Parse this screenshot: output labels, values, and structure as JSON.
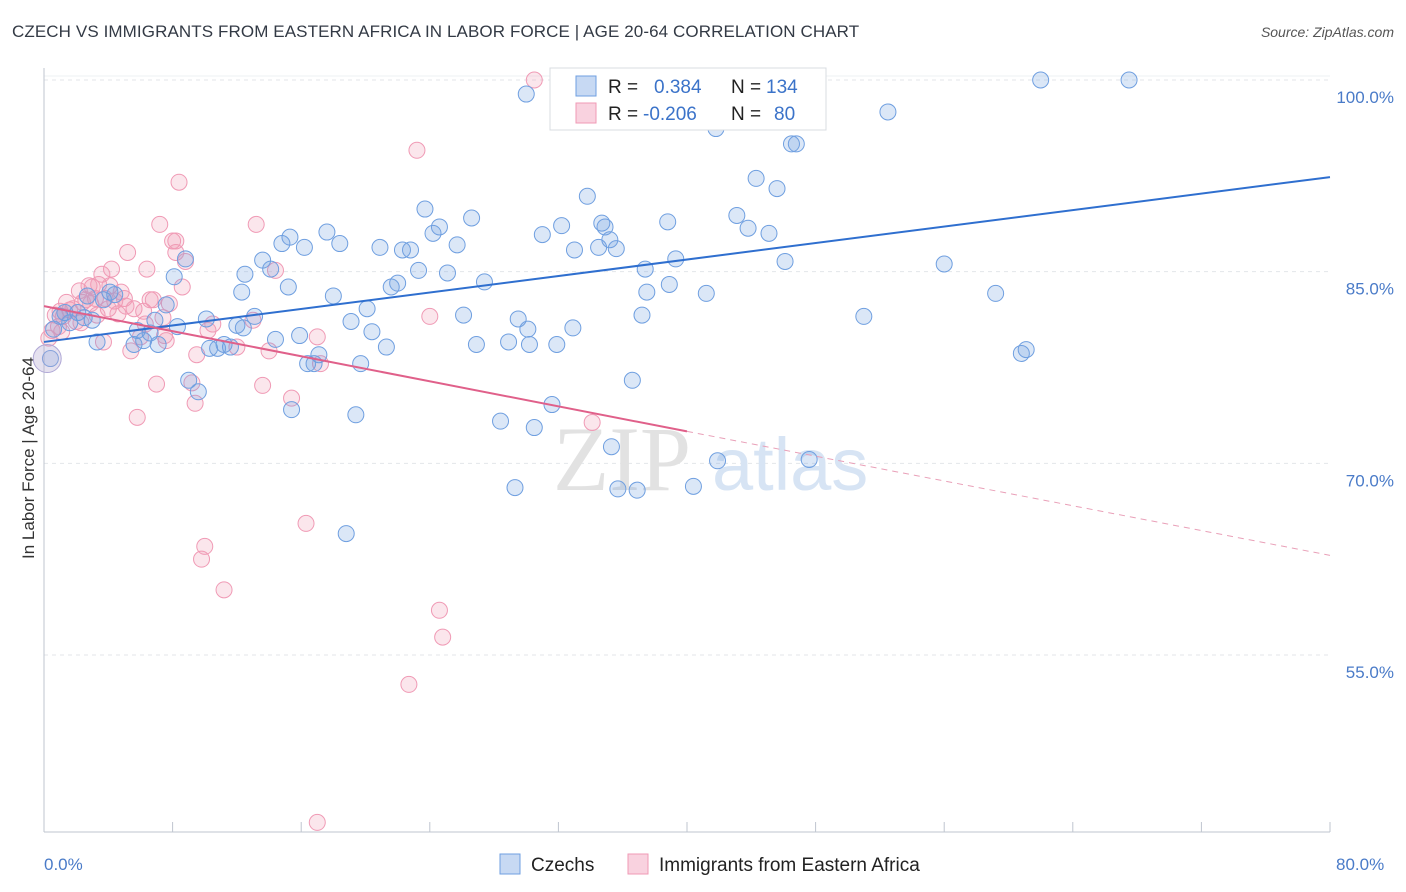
{
  "title": "CZECH VS IMMIGRANTS FROM EASTERN AFRICA IN LABOR FORCE | AGE 20-64 CORRELATION CHART",
  "source": "Source: ZipAtlas.com",
  "watermark": {
    "zip": "ZIP",
    "atlas": "atlas"
  },
  "colors": {
    "blue": "#6f9fe0",
    "blue_line": "#2f6fcf",
    "pink": "#f09ab5",
    "pink_line": "#e0608a",
    "tick": "#4a7bc8"
  },
  "legend": {
    "r_label": "R =",
    "n_label": "N =",
    "rows": [
      {
        "r": "0.384",
        "n": "134"
      },
      {
        "r": "-0.206",
        "n": "80"
      }
    ]
  },
  "bottom_legend": [
    "Czechs",
    "Immigrants from Eastern Africa"
  ],
  "chart_data": {
    "type": "scatter",
    "title": "CZECH VS IMMIGRANTS FROM EASTERN AFRICA IN LABOR FORCE | AGE 20-64 CORRELATION CHART",
    "ylabel": "In Labor Force | Age 20-64",
    "xlabel": "",
    "xlim": [
      0,
      80
    ],
    "ylim": [
      40,
      102.5
    ],
    "x_tick_labels": [
      "0.0%",
      "80.0%"
    ],
    "y_ticks": [
      55,
      70,
      85,
      100
    ],
    "y_tick_labels": [
      "55.0%",
      "70.0%",
      "85.0%",
      "100.0%"
    ],
    "grid": true,
    "legend_position": "top-center",
    "series": [
      {
        "name": "Czechs",
        "r": 0.384,
        "n": 134,
        "trend": {
          "x": [
            0,
            80
          ],
          "y": [
            79.5,
            92.4
          ]
        },
        "points": [
          [
            0.4,
            78.2
          ],
          [
            0.6,
            80.5
          ],
          [
            1.0,
            81.5
          ],
          [
            1.3,
            81.8
          ],
          [
            1.6,
            81.0
          ],
          [
            2.1,
            81.8
          ],
          [
            2.5,
            81.4
          ],
          [
            3.0,
            81.2
          ],
          [
            3.3,
            79.5
          ],
          [
            3.7,
            82.8
          ],
          [
            4.1,
            83.4
          ],
          [
            4.4,
            83.2
          ],
          [
            5.6,
            79.3
          ],
          [
            5.8,
            80.4
          ],
          [
            6.2,
            79.6
          ],
          [
            6.6,
            80.2
          ],
          [
            7.1,
            79.3
          ],
          [
            7.6,
            82.4
          ],
          [
            8.3,
            80.7
          ],
          [
            8.8,
            86.0
          ],
          [
            9.0,
            76.5
          ],
          [
            9.6,
            75.6
          ],
          [
            10.1,
            81.3
          ],
          [
            10.3,
            79.0
          ],
          [
            10.8,
            79.0
          ],
          [
            11.2,
            79.3
          ],
          [
            11.6,
            79.1
          ],
          [
            12.0,
            80.8
          ],
          [
            12.4,
            80.6
          ],
          [
            12.3,
            83.4
          ],
          [
            12.5,
            84.8
          ],
          [
            13.1,
            81.5
          ],
          [
            13.6,
            85.9
          ],
          [
            14.1,
            85.2
          ],
          [
            14.4,
            79.7
          ],
          [
            14.8,
            87.2
          ],
          [
            15.3,
            87.7
          ],
          [
            15.4,
            74.2
          ],
          [
            15.9,
            80.0
          ],
          [
            16.2,
            86.9
          ],
          [
            16.4,
            77.8
          ],
          [
            16.8,
            77.8
          ],
          [
            17.1,
            78.5
          ],
          [
            17.6,
            88.1
          ],
          [
            18.0,
            83.1
          ],
          [
            18.4,
            87.2
          ],
          [
            18.8,
            64.5
          ],
          [
            19.1,
            81.1
          ],
          [
            19.4,
            73.8
          ],
          [
            19.7,
            77.8
          ],
          [
            20.1,
            82.1
          ],
          [
            20.4,
            80.3
          ],
          [
            20.9,
            86.9
          ],
          [
            21.3,
            79.1
          ],
          [
            21.6,
            83.8
          ],
          [
            22.0,
            84.1
          ],
          [
            22.3,
            86.7
          ],
          [
            22.8,
            86.7
          ],
          [
            23.3,
            85.1
          ],
          [
            23.7,
            89.9
          ],
          [
            24.2,
            88.0
          ],
          [
            24.6,
            88.5
          ],
          [
            25.1,
            84.9
          ],
          [
            25.7,
            87.1
          ],
          [
            26.1,
            81.6
          ],
          [
            26.6,
            89.2
          ],
          [
            26.9,
            79.3
          ],
          [
            27.4,
            84.2
          ],
          [
            28.4,
            73.3
          ],
          [
            28.9,
            79.5
          ],
          [
            29.3,
            68.1
          ],
          [
            29.5,
            81.3
          ],
          [
            30.1,
            80.5
          ],
          [
            30.2,
            79.3
          ],
          [
            30.0,
            98.9
          ],
          [
            30.5,
            72.8
          ],
          [
            31.0,
            87.9
          ],
          [
            31.6,
            74.6
          ],
          [
            31.9,
            79.3
          ],
          [
            32.2,
            88.6
          ],
          [
            32.9,
            80.6
          ],
          [
            33.0,
            86.7
          ],
          [
            33.8,
            90.9
          ],
          [
            34.5,
            86.9
          ],
          [
            34.7,
            88.8
          ],
          [
            34.9,
            88.5
          ],
          [
            35.2,
            87.5
          ],
          [
            35.6,
            86.8
          ],
          [
            35.3,
            71.3
          ],
          [
            35.7,
            68.0
          ],
          [
            36.0,
            100.0
          ],
          [
            36.6,
            76.5
          ],
          [
            36.9,
            67.9
          ],
          [
            37.2,
            81.6
          ],
          [
            37.5,
            83.4
          ],
          [
            38.8,
            88.9
          ],
          [
            38.9,
            84.0
          ],
          [
            39.3,
            86.0
          ],
          [
            40.4,
            68.2
          ],
          [
            40.6,
            96.8
          ],
          [
            41.2,
            83.3
          ],
          [
            41.8,
            96.2
          ],
          [
            42.3,
            97.4
          ],
          [
            43.1,
            89.4
          ],
          [
            43.8,
            88.4
          ],
          [
            44.3,
            92.3
          ],
          [
            45.1,
            88.0
          ],
          [
            45.6,
            91.5
          ],
          [
            46.1,
            85.8
          ],
          [
            46.5,
            95.0
          ],
          [
            46.8,
            95.0
          ],
          [
            47.6,
            70.3
          ],
          [
            51.0,
            81.5
          ],
          [
            52.5,
            97.5
          ],
          [
            56.0,
            85.6
          ],
          [
            59.2,
            83.3
          ],
          [
            60.8,
            78.6
          ],
          [
            61.1,
            78.9
          ],
          [
            62.0,
            100.0
          ],
          [
            67.5,
            100.0
          ],
          [
            35.8,
            99.8
          ],
          [
            37.4,
            85.2
          ],
          [
            41.9,
            70.2
          ],
          [
            2.7,
            83.1
          ],
          [
            6.9,
            81.2
          ],
          [
            8.1,
            84.6
          ],
          [
            15.2,
            83.8
          ]
        ]
      },
      {
        "name": "Immigrants from Eastern Africa",
        "r": -0.206,
        "n": 80,
        "trend": {
          "x": [
            0,
            40
          ],
          "y": [
            82.3,
            72.5
          ]
        },
        "trend_dashed": {
          "x": [
            40,
            80
          ],
          "y": [
            72.5,
            62.8
          ]
        },
        "points": [
          [
            0.3,
            79.8
          ],
          [
            0.5,
            80.4
          ],
          [
            0.7,
            81.6
          ],
          [
            1.0,
            81.9
          ],
          [
            1.2,
            81.5
          ],
          [
            1.4,
            82.6
          ],
          [
            1.6,
            82.0
          ],
          [
            1.8,
            82.1
          ],
          [
            2.0,
            81.1
          ],
          [
            2.2,
            83.5
          ],
          [
            2.4,
            82.6
          ],
          [
            2.6,
            82.8
          ],
          [
            2.8,
            83.9
          ],
          [
            3.0,
            83.8
          ],
          [
            3.2,
            82.9
          ],
          [
            3.4,
            84.0
          ],
          [
            3.6,
            84.8
          ],
          [
            3.8,
            82.9
          ],
          [
            4.0,
            82.1
          ],
          [
            4.2,
            85.2
          ],
          [
            4.4,
            82.7
          ],
          [
            4.6,
            81.7
          ],
          [
            4.8,
            83.4
          ],
          [
            5.0,
            82.9
          ],
          [
            5.2,
            86.5
          ],
          [
            5.4,
            78.8
          ],
          [
            5.6,
            82.1
          ],
          [
            5.8,
            73.6
          ],
          [
            6.0,
            79.9
          ],
          [
            6.2,
            81.9
          ],
          [
            6.4,
            85.2
          ],
          [
            6.6,
            82.8
          ],
          [
            6.8,
            82.8
          ],
          [
            7.0,
            76.2
          ],
          [
            7.2,
            88.7
          ],
          [
            7.4,
            81.4
          ],
          [
            7.6,
            79.6
          ],
          [
            7.8,
            82.5
          ],
          [
            8.0,
            87.4
          ],
          [
            8.2,
            86.5
          ],
          [
            8.4,
            92.0
          ],
          [
            8.6,
            83.8
          ],
          [
            8.8,
            85.8
          ],
          [
            9.2,
            76.3
          ],
          [
            9.4,
            74.7
          ],
          [
            9.8,
            62.5
          ],
          [
            10.0,
            63.5
          ],
          [
            10.2,
            80.4
          ],
          [
            11.2,
            60.1
          ],
          [
            13.2,
            88.7
          ],
          [
            13.6,
            76.1
          ],
          [
            14.0,
            78.8
          ],
          [
            14.4,
            85.1
          ],
          [
            15.4,
            75.1
          ],
          [
            16.3,
            65.3
          ],
          [
            17.0,
            79.9
          ],
          [
            17.2,
            77.8
          ],
          [
            22.7,
            52.7
          ],
          [
            23.2,
            94.5
          ],
          [
            24.0,
            81.5
          ],
          [
            24.6,
            58.5
          ],
          [
            24.8,
            56.4
          ],
          [
            30.5,
            100.0
          ],
          [
            34.1,
            73.2
          ],
          [
            17.0,
            41.9
          ],
          [
            8.2,
            87.4
          ],
          [
            3.7,
            79.5
          ],
          [
            1.1,
            80.3
          ],
          [
            2.9,
            82.5
          ],
          [
            4.1,
            83.9
          ],
          [
            5.1,
            82.3
          ],
          [
            6.3,
            80.9
          ],
          [
            7.5,
            80.0
          ],
          [
            9.5,
            78.5
          ],
          [
            10.5,
            80.9
          ],
          [
            12.0,
            79.1
          ],
          [
            13.0,
            81.2
          ],
          [
            0.9,
            80.7
          ],
          [
            2.3,
            81.0
          ],
          [
            3.3,
            81.6
          ]
        ]
      }
    ]
  }
}
